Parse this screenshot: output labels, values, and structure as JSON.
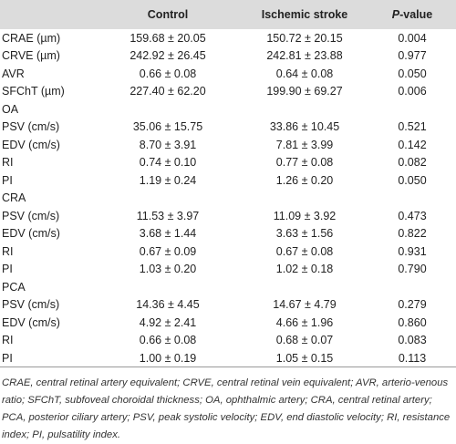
{
  "table": {
    "header": [
      "Control",
      "Ischemic stroke",
      "P-value"
    ],
    "rows": [
      [
        "CRAE (µm)",
        "159.68 ± 20.05",
        "150.72 ± 20.15",
        "0.004"
      ],
      [
        "CRVE (µm)",
        "242.92 ± 26.45",
        "242.81 ± 23.88",
        "0.977"
      ],
      [
        "AVR",
        "0.66 ± 0.08",
        "0.64 ± 0.08",
        "0.050"
      ],
      [
        "SFChT (µm)",
        "227.40 ± 62.20",
        "199.90 ± 69.27",
        "0.006"
      ],
      [
        "OA"
      ],
      [
        "PSV (cm/s)",
        "35.06 ± 15.75",
        "33.86 ± 10.45",
        "0.521"
      ],
      [
        "EDV (cm/s)",
        "8.70 ± 3.91",
        "7.81 ± 3.99",
        "0.142"
      ],
      [
        "RI",
        "0.74 ± 0.10",
        "0.77 ± 0.08",
        "0.082"
      ],
      [
        "PI",
        "1.19 ± 0.24",
        "1.26 ± 0.20",
        "0.050"
      ],
      [
        "CRA"
      ],
      [
        "PSV (cm/s)",
        "11.53 ± 3.97",
        "11.09 ± 3.92",
        "0.473"
      ],
      [
        "EDV (cm/s)",
        "3.68 ± 1.44",
        "3.63 ± 1.56",
        "0.822"
      ],
      [
        "RI",
        "0.67 ± 0.09",
        "0.67 ± 0.08",
        "0.931"
      ],
      [
        "PI",
        "1.03 ± 0.20",
        "1.02 ± 0.18",
        "0.790"
      ],
      [
        "PCA"
      ],
      [
        "PSV (cm/s)",
        "14.36 ± 4.45",
        "14.67 ± 4.79",
        "0.279"
      ],
      [
        "EDV (cm/s)",
        "4.92 ± 2.41",
        "4.66 ± 1.96",
        "0.860"
      ],
      [
        "RI",
        "0.66 ± 0.08",
        "0.68 ± 0.07",
        "0.083"
      ],
      [
        "PI",
        "1.00 ± 0.19",
        "1.05 ± 0.15",
        "0.113"
      ]
    ],
    "footnote": "CRAE, central retinal artery equivalent; CRVE, central retinal vein equivalent; AVR, arterio-venous ratio; SFChT, subfoveal choroidal thickness; OA, ophthalmic artery; CRA, central retinal artery; PCA, posterior ciliary artery; PSV, peak systolic velocity; EDV, end diastolic velocity; RI, resistance index; PI, pulsatility index."
  }
}
